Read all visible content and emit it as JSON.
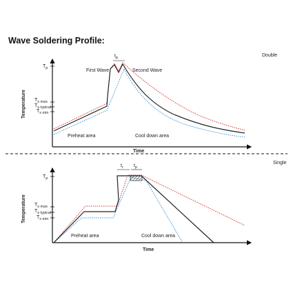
{
  "header": {
    "title": "Wave Soldering Profile:"
  },
  "double": {
    "label": "Double",
    "y_labels": [
      {
        "base": "T",
        "sub": "p"
      },
      {
        "base": "T",
        "sub": "s max"
      },
      {
        "base": "T",
        "sub": "s typical"
      },
      {
        "base": "T",
        "sub": "s min"
      }
    ],
    "y_axis": "Temperature",
    "x_axis": "Time",
    "tp": {
      "base": "t",
      "sub": "p"
    },
    "first_wave": "First Wave",
    "second_wave": "Second Wave",
    "preheat": "Preheat area",
    "cooldown": "Cool down area"
  },
  "single": {
    "label": "Single",
    "y_labels": [
      {
        "base": "T",
        "sub": "p"
      },
      {
        "base": "T",
        "sub": "s max"
      },
      {
        "base": "T",
        "sub": "s typical"
      },
      {
        "base": "T",
        "sub": "s min"
      }
    ],
    "y_axis": "Temperature",
    "x_axis": "Time",
    "tr": {
      "base": "t",
      "sub": "r"
    },
    "tp": {
      "base": "t",
      "sub": "p"
    },
    "preheat": "Preheat area",
    "cooldown": "Cool down area"
  }
}
